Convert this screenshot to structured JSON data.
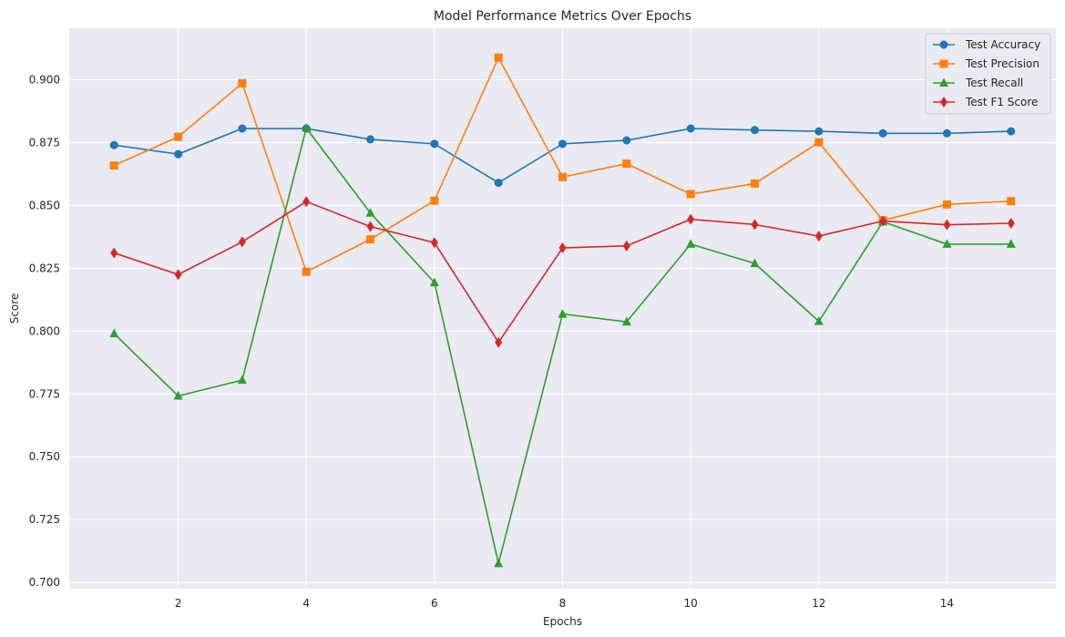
{
  "chart_data": {
    "type": "line",
    "title": "Model Performance Metrics Over Epochs",
    "xlabel": "Epochs",
    "ylabel": "Score",
    "x": [
      1,
      2,
      3,
      4,
      5,
      6,
      7,
      8,
      9,
      10,
      11,
      12,
      13,
      14,
      15
    ],
    "xlim": [
      0.3,
      15.7
    ],
    "ylim": [
      0.6975,
      0.9205
    ],
    "x_ticks": [
      "2",
      "4",
      "6",
      "8",
      "10",
      "12",
      "14"
    ],
    "x_tick_values": [
      2,
      4,
      6,
      8,
      10,
      12,
      14
    ],
    "y_ticks": [
      "0.700",
      "0.725",
      "0.750",
      "0.775",
      "0.800",
      "0.825",
      "0.850",
      "0.875",
      "0.900"
    ],
    "y_tick_values": [
      0.7,
      0.725,
      0.75,
      0.775,
      0.8,
      0.825,
      0.85,
      0.875,
      0.9
    ],
    "grid": true,
    "legend_position": "top-right",
    "series": [
      {
        "name": "Test Accuracy",
        "color": "#1f77b4",
        "marker": "circle",
        "values": [
          0.874,
          0.8704,
          0.8806,
          0.8806,
          0.8763,
          0.8745,
          0.859,
          0.8745,
          0.8759,
          0.8806,
          0.88,
          0.8795,
          0.8787,
          0.8787,
          0.8795
        ]
      },
      {
        "name": "Test Precision",
        "color": "#ff7f0e",
        "marker": "square",
        "values": [
          0.8659,
          0.8773,
          0.8986,
          0.8236,
          0.8365,
          0.8519,
          0.9088,
          0.8613,
          0.8666,
          0.8545,
          0.8587,
          0.8751,
          0.8441,
          0.8504,
          0.8517
        ]
      },
      {
        "name": "Test Recall",
        "color": "#2ca02c",
        "marker": "triangle",
        "values": [
          0.799,
          0.7742,
          0.7805,
          0.8808,
          0.847,
          0.8193,
          0.7075,
          0.8068,
          0.8037,
          0.8346,
          0.8269,
          0.8039,
          0.8435,
          0.8346,
          0.8346
        ]
      },
      {
        "name": "Test F1 Score",
        "color": "#d62728",
        "marker": "diamond",
        "values": [
          0.8311,
          0.8225,
          0.8355,
          0.8515,
          0.8416,
          0.8352,
          0.7955,
          0.8331,
          0.8339,
          0.8445,
          0.8424,
          0.8378,
          0.8438,
          0.8423,
          0.8429
        ]
      }
    ]
  }
}
